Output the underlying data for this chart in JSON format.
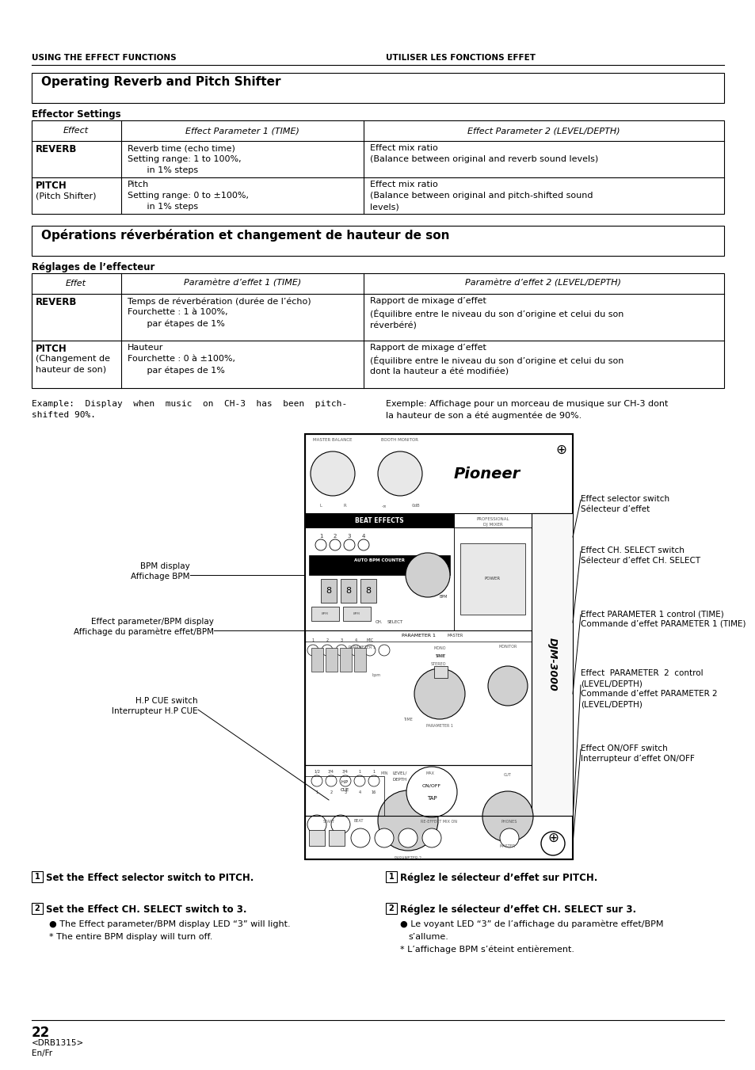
{
  "page_bg": "#ffffff",
  "header_left": "USING THE EFFECT FUNCTIONS",
  "header_right": "UTILISER LES FONCTIONS EFFET",
  "section1_title": "Operating Reverb and Pitch Shifter",
  "section1_subtitle": "Effector Settings",
  "table1_headers": [
    "Effect",
    "Effect Parameter 1 (TIME)",
    "Effect Parameter 2 (LEVEL/DEPTH)"
  ],
  "table1_rows": [
    {
      "col1_bold": "REVERB",
      "col1_extra": "",
      "col2": "Reverb time (echo time)\nSetting range: 1 to 100%,\n       in 1% steps",
      "col3": "Effect mix ratio\n(Balance between original and reverb sound levels)"
    },
    {
      "col1_bold": "PITCH",
      "col1_extra": "(Pitch Shifter)",
      "col2": "Pitch\nSetting range: 0 to ±100%,\n       in 1% steps",
      "col3": "Effect mix ratio\n(Balance between original and pitch-shifted sound\nlevels)"
    }
  ],
  "section2_title": "Opérations réverbération et changement de hauteur de son",
  "section2_subtitle": "Réglages de l’effecteur",
  "table2_headers": [
    "Effet",
    "Paramètre d’effet 1 (TIME)",
    "Paramètre d’effet 2 (LEVEL/DEPTH)"
  ],
  "table2_rows": [
    {
      "col1_bold": "REVERB",
      "col1_extra": "",
      "col2": "Temps de réverbération (durée de l’écho)\nFourchette : 1 à 100%,\n       par étapes de 1%",
      "col3": "Rapport de mixage d’effet\n(Équilibre entre le niveau du son d’origine et celui du son\nréverbéré)"
    },
    {
      "col1_bold": "PITCH",
      "col1_extra": "(Changement de\nhauteur de son)",
      "col2": "Hauteur\nFourchette : 0 à ±100%,\n       par étapes de 1%",
      "col3": "Rapport de mixage d’effet\n(Équilibre entre le niveau du son d’origine et celui du son\ndont la hauteur a été modifiée)"
    }
  ],
  "example_text_left": "Example:  Display  when  music  on  CH-3  has  been  pitch-\nshifted 90%.",
  "example_text_right": "Exemple: Affichage pour un morceau de musique sur CH-3 dont\nla hauteur de son a été augmentée de 90%.",
  "footer_page": "22",
  "footer_line1": "<DRB1315>",
  "footer_line2": "En/Fr"
}
